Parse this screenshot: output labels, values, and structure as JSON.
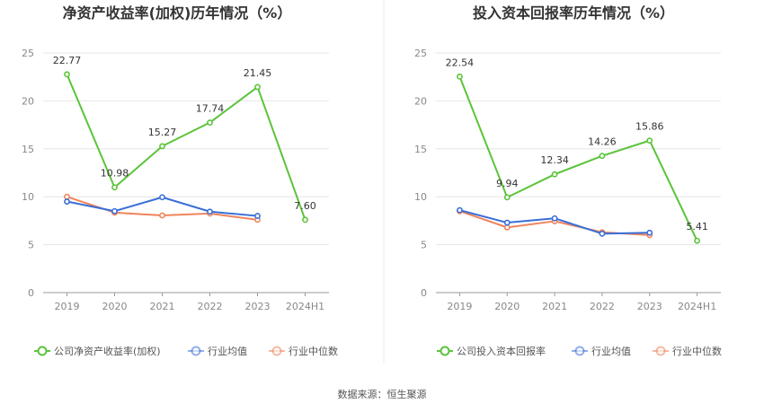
{
  "source_text": "数据来源：恒生聚源",
  "colors": {
    "company": "#5bc43a",
    "industry_avg": "#3a6fd8",
    "industry_median": "#f0845c",
    "grid": "#e6e6e6",
    "axis": "#999999",
    "divider": "#eeeeee"
  },
  "chart_data": [
    {
      "type": "line",
      "title": "净资产收益率(加权)历年情况（%）",
      "categories": [
        "2019",
        "2020",
        "2021",
        "2022",
        "2023",
        "2024H1"
      ],
      "ylim": [
        0,
        25
      ],
      "yticks": [
        "0",
        "5",
        "10",
        "15",
        "20",
        "25"
      ],
      "grid": true,
      "legend_position": "bottom",
      "series": [
        {
          "name": "公司净资产收益率(加权)",
          "color_key": "company",
          "values": [
            22.77,
            10.98,
            15.27,
            17.74,
            21.45,
            7.6
          ],
          "labels": [
            "22.77",
            "10.98",
            "15.27",
            "17.74",
            "21.45",
            "7.60"
          ]
        },
        {
          "name": "行业均值",
          "color_key": "industry_avg",
          "values": [
            9.5,
            8.5,
            9.95,
            8.45,
            8.0,
            null
          ]
        },
        {
          "name": "行业中位数",
          "color_key": "industry_median",
          "values": [
            10.0,
            8.35,
            8.05,
            8.25,
            7.6,
            null
          ]
        }
      ]
    },
    {
      "type": "line",
      "title": "投入资本回报率历年情况（%）",
      "categories": [
        "2019",
        "2020",
        "2021",
        "2022",
        "2023",
        "2024H1"
      ],
      "ylim": [
        0,
        25
      ],
      "yticks": [
        "0",
        "5",
        "10",
        "15",
        "20",
        "25"
      ],
      "grid": true,
      "legend_position": "bottom",
      "series": [
        {
          "name": "公司投入资本回报率",
          "color_key": "company",
          "values": [
            22.54,
            9.94,
            12.34,
            14.26,
            15.86,
            5.41
          ],
          "labels": [
            "22.54",
            "9.94",
            "12.34",
            "14.26",
            "15.86",
            "5.41"
          ]
        },
        {
          "name": "行业均值",
          "color_key": "industry_avg",
          "values": [
            8.6,
            7.3,
            7.75,
            6.15,
            6.25,
            null
          ]
        },
        {
          "name": "行业中位数",
          "color_key": "industry_median",
          "values": [
            8.5,
            6.8,
            7.45,
            6.3,
            6.0,
            null
          ]
        }
      ]
    }
  ]
}
